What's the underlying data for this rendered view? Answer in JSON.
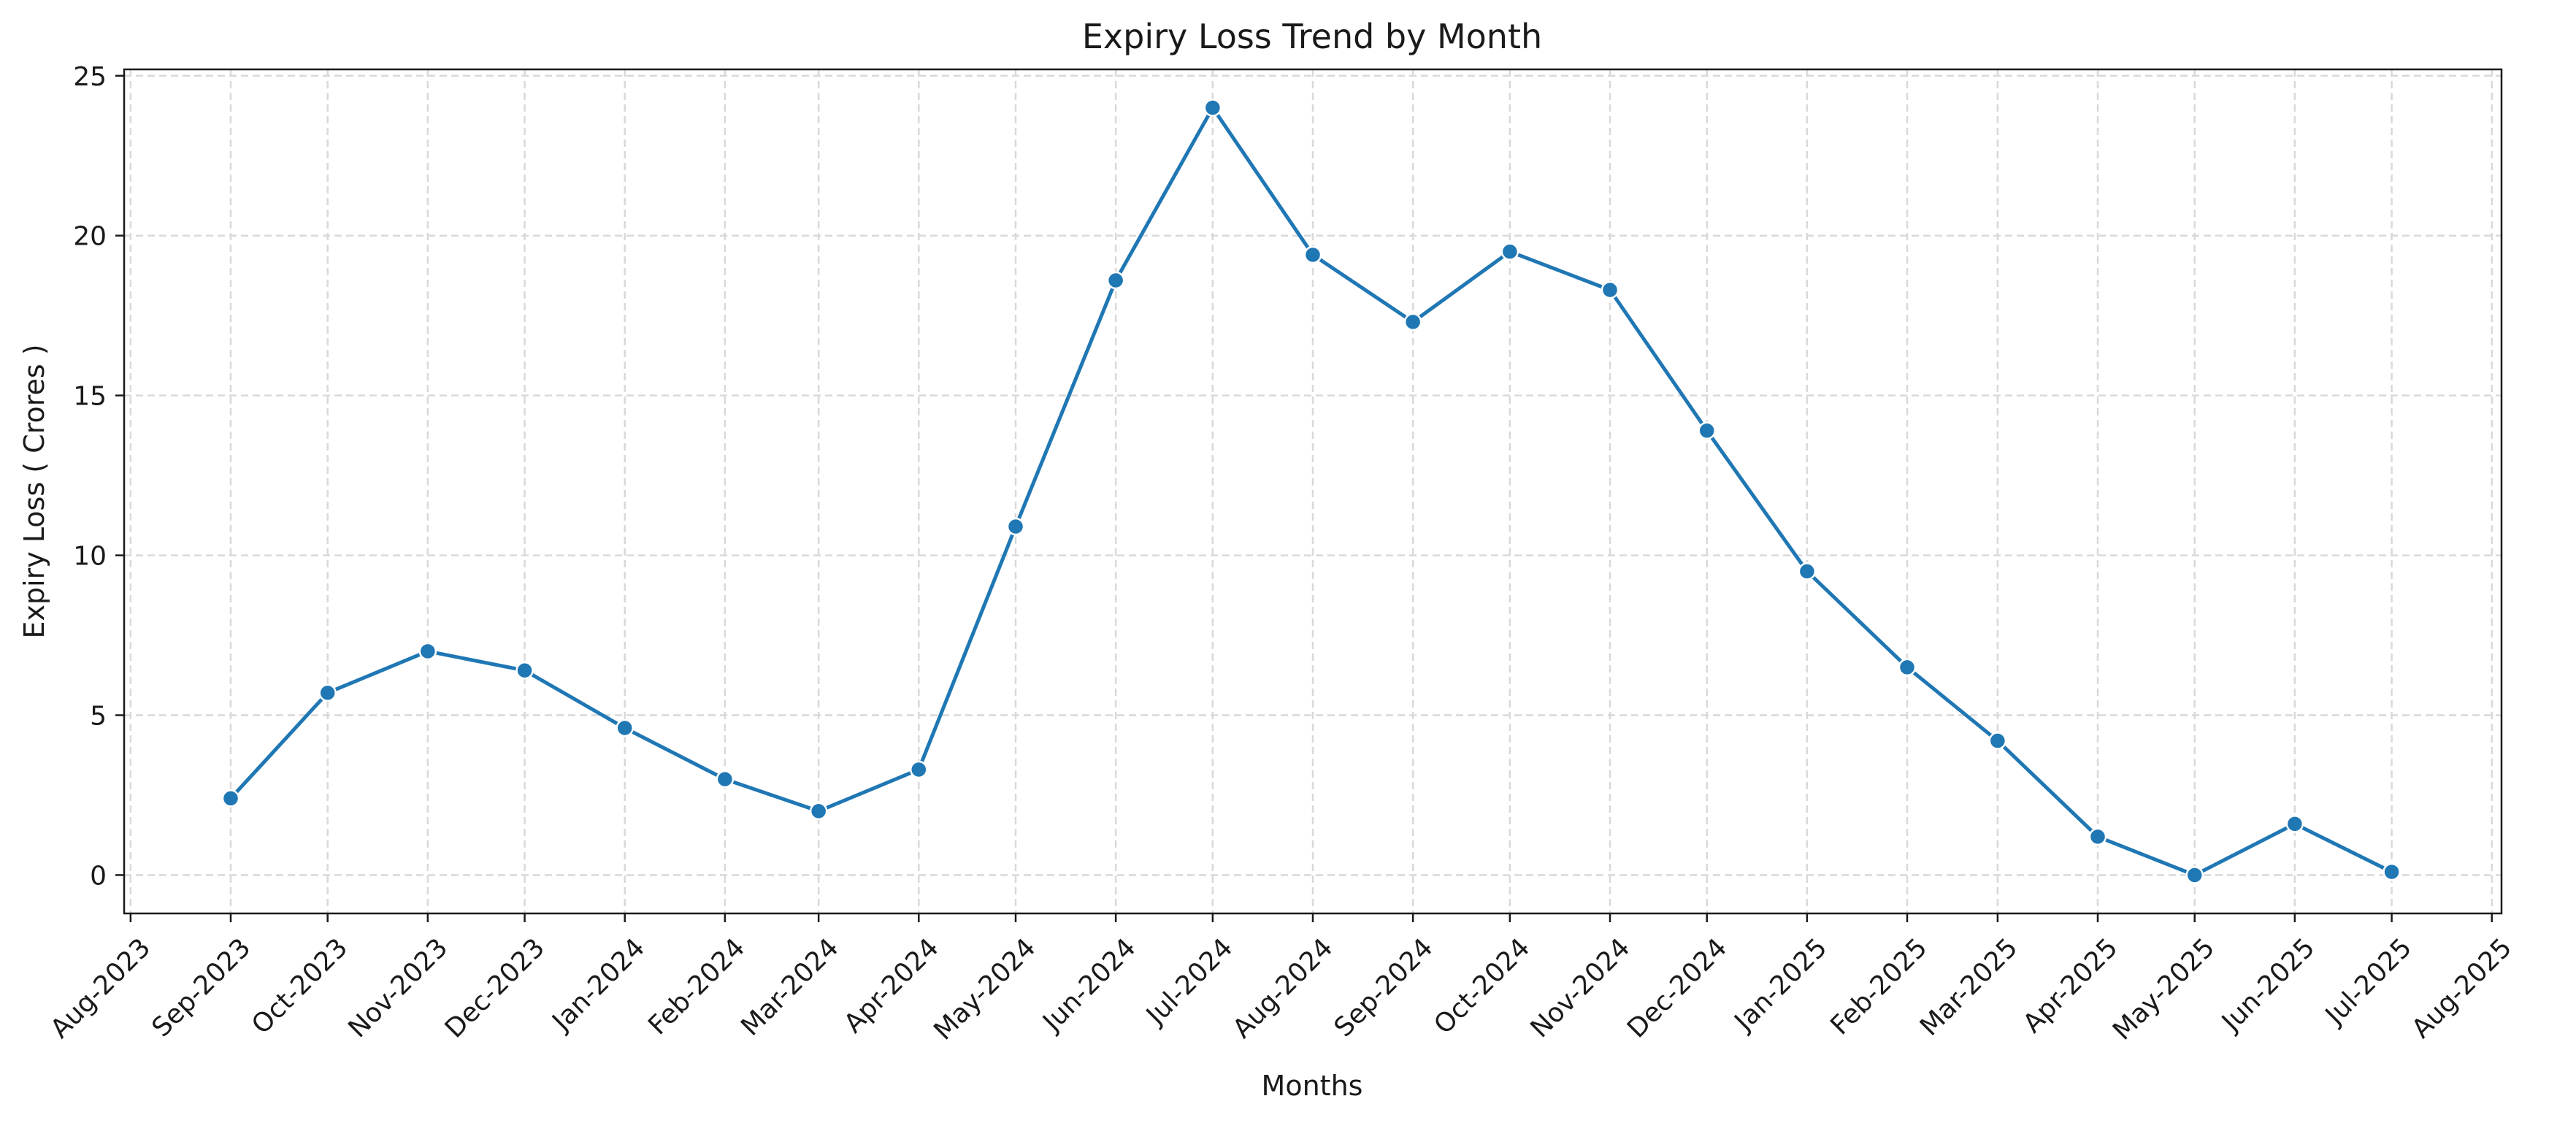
{
  "chart_data": {
    "type": "line",
    "title": "Expiry Loss Trend by Month",
    "xlabel": "Months",
    "ylabel": "Expiry Loss ( Crores )",
    "x_ticks": [
      "Aug-2023",
      "Sep-2023",
      "Oct-2023",
      "Nov-2023",
      "Dec-2023",
      "Jan-2024",
      "Feb-2024",
      "Mar-2024",
      "Apr-2024",
      "May-2024",
      "Jun-2024",
      "Jul-2024",
      "Aug-2024",
      "Sep-2024",
      "Oct-2024",
      "Nov-2024",
      "Dec-2024",
      "Jan-2025",
      "Feb-2025",
      "Mar-2025",
      "Apr-2025",
      "May-2025",
      "Jun-2025",
      "Jul-2025",
      "Aug-2025"
    ],
    "y_ticks": [
      "0",
      "5",
      "10",
      "15",
      "20",
      "25"
    ],
    "x_range": [
      "2023-07-30",
      "2025-08-04"
    ],
    "ylim": [
      -1.2,
      25.2
    ],
    "grid": true,
    "line_color": "#1f77b4",
    "grid_color": "#d9d9d9",
    "series": [
      {
        "x": [
          "2023-09-01",
          "2023-10-01",
          "2023-11-01",
          "2023-12-01",
          "2024-01-01",
          "2024-02-01",
          "2024-03-01",
          "2024-04-01",
          "2024-05-01",
          "2024-06-01",
          "2024-07-01",
          "2024-08-01",
          "2024-09-01",
          "2024-10-01",
          "2024-11-01",
          "2024-12-01",
          "2025-01-01",
          "2025-02-01",
          "2025-03-01",
          "2025-04-01",
          "2025-05-01",
          "2025-06-01",
          "2025-07-01"
        ],
        "values": [
          2.4,
          5.7,
          7.0,
          6.4,
          4.6,
          3.0,
          2.0,
          3.3,
          10.9,
          18.6,
          24.0,
          19.4,
          17.3,
          19.5,
          18.3,
          13.9,
          9.5,
          6.5,
          4.2,
          1.2,
          0.0,
          1.6,
          0.1
        ]
      }
    ]
  }
}
